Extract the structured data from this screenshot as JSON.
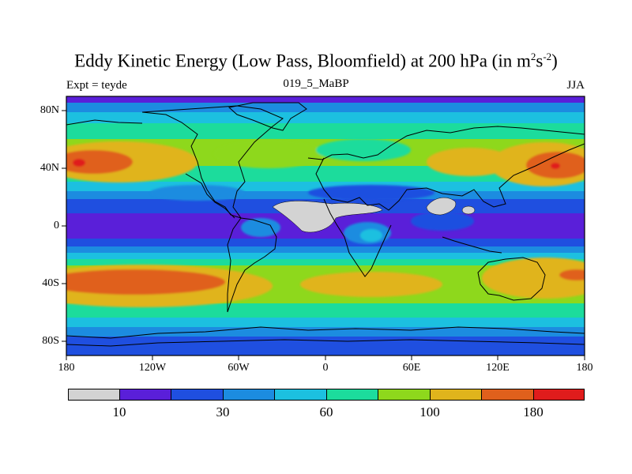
{
  "title": {
    "main": "Eddy Kinetic Energy (Low Pass, Bloomfield) at 200 hPa (in m",
    "sup1": "2",
    "mid": "s",
    "sup2": "-2",
    "end": ")"
  },
  "left_label": "Expt = teyde",
  "center_label": "019_5_MaBP",
  "right_label": "JJA",
  "x_ticks": [
    "180",
    "120W",
    "60W",
    "0",
    "60E",
    "120E",
    "180"
  ],
  "y_ticks": [
    "80N",
    "40N",
    "0",
    "40S",
    "80S"
  ],
  "colorbar": {
    "colors": [
      "#d3d3d3",
      "#5a1fd9",
      "#1f4fe0",
      "#1c8ce0",
      "#1cc0e0",
      "#1cdc9c",
      "#8ed81c",
      "#e0b41c",
      "#e0601c",
      "#e01c1c"
    ],
    "labels": [
      "10",
      "30",
      "60",
      "100",
      "180"
    ]
  }
}
